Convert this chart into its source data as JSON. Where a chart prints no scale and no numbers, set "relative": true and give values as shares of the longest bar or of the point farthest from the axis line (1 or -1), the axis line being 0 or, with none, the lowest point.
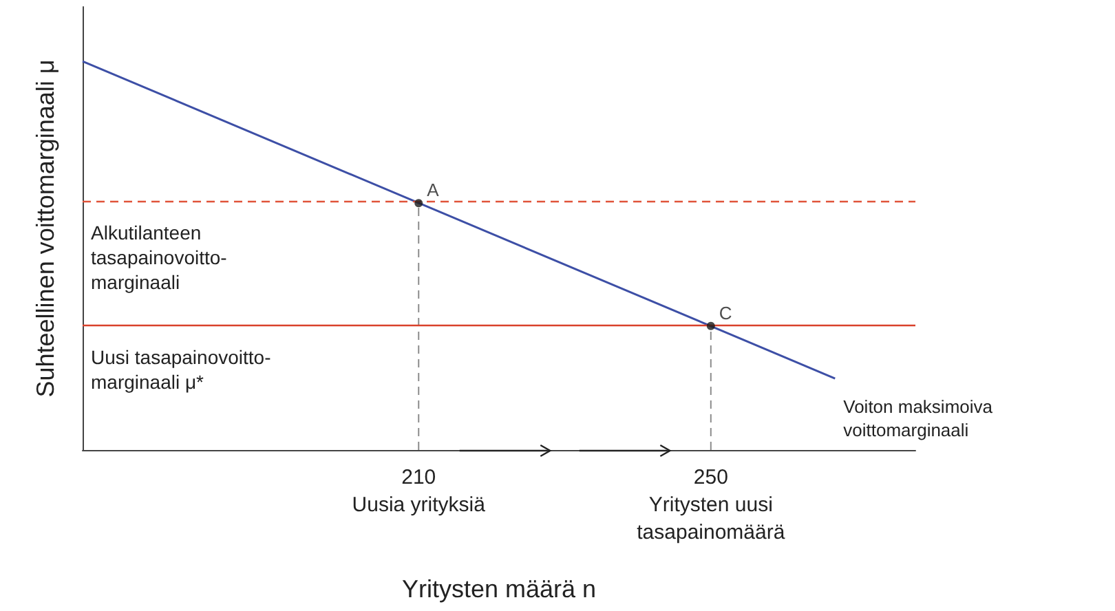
{
  "chart_data": {
    "type": "line",
    "relative": true,
    "xlabel": "Yritysten määrä n",
    "ylabel": "Suhteellinen voittomarginaali μ",
    "xlim": [
      164,
      278
    ],
    "xticks": [
      {
        "value": 210,
        "label": "210\nUusia yrityksiä"
      },
      {
        "value": 250,
        "label": "250\nYritysten uusi\ntasapainomäärä"
      }
    ],
    "series": [
      {
        "name": "Voiton maksimoiva\nvoittomarginaali",
        "color": "#3d4fa6",
        "x": [
          164,
          267
        ],
        "values": [
          1,
          0.184
        ]
      },
      {
        "color": "#8c8c8c",
        "line_style": "dashed",
        "x": [
          210,
          210
        ],
        "values": [
          0,
          0.635
        ]
      },
      {
        "color": "#8c8c8c",
        "line_style": "dashed",
        "x": [
          250,
          250
        ],
        "values": [
          0,
          0.319
        ]
      },
      {
        "type": "scatter",
        "color": "#1a1a1a",
        "marker": "circle",
        "x": [
          210,
          250
        ],
        "values": [
          0.635,
          0.319
        ]
      }
    ],
    "ref_lines": [
      {
        "axis": "y",
        "value": 0.635,
        "label": "Alkutilanteen\ntasapainovoitto-\nmarginaali",
        "color": "#e0533a",
        "line_style": "dashed"
      },
      {
        "axis": "y",
        "value": 0.319,
        "label": "Uusi tasapainovoitto-\nmarginaali μ*",
        "color": "#d9412b",
        "line_style": "solid"
      }
    ],
    "annotations": [
      {
        "text": "A",
        "x": 210,
        "y": 0.635
      },
      {
        "text": "C",
        "x": 250,
        "y": 0.319
      }
    ],
    "grid": false,
    "legend": false
  }
}
